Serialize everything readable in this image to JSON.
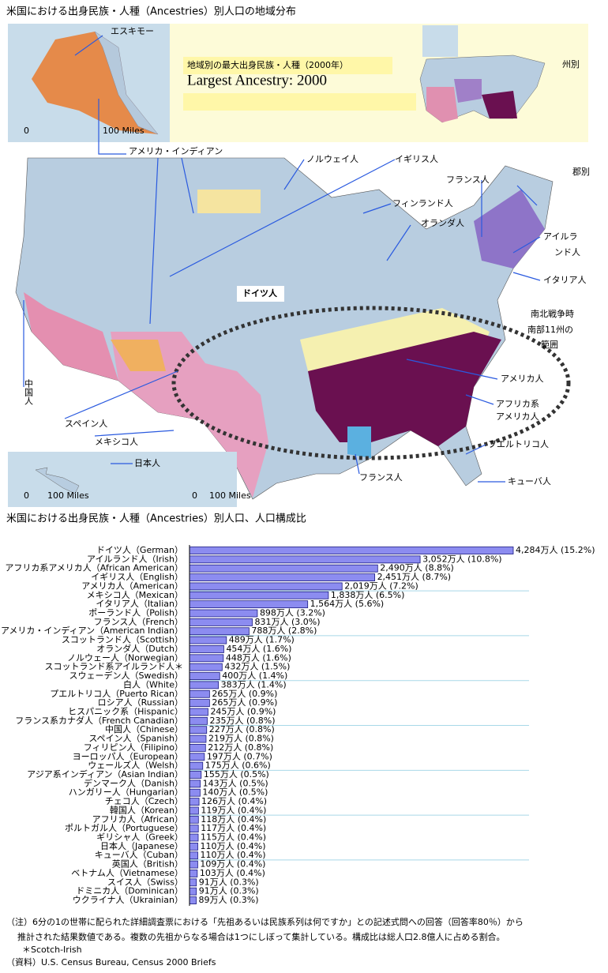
{
  "header": {
    "title": "米国における出身民族・人種（Ancestries）別人口の地域分布"
  },
  "map": {
    "legend_title_ja": "地域別の最大出身民族・人種（2000年）",
    "legend_title_en": "Largest Ancestry: 2000",
    "state_label": "州別",
    "county_label": "郡別",
    "labels": [
      "エスキモー",
      "アメリカ・インディアン",
      "ノルウェイ人",
      "イギリス人",
      "フランス人",
      "フィンランド人",
      "オランダ人",
      "アイルラ",
      "ンド人",
      "イタリア人",
      "ドイツ人",
      "南北戦争時",
      "南部11州の",
      "範囲",
      "アメリカ人",
      "アフリカ系",
      "アメリカ人",
      "プエルトリコ人",
      "キューバ人",
      "フランス人",
      "スペイン人",
      "メキシコ人",
      "日本人",
      "中国人"
    ],
    "scale_labels": [
      "0",
      "100 Miles"
    ]
  },
  "chart_data": {
    "type": "bar",
    "orientation": "horizontal",
    "title": "米国における出身民族・人種（Ancestries）別人口、人口構成比",
    "color": "#8c8cf0",
    "categories": [
      "ドイツ人（German）",
      "アイルランド人（Irish）",
      "アフリカ系アメリカ人（African American）",
      "イギリス人（English）",
      "アメリカ人（American）",
      "メキシコ人（Mexican）",
      "イタリア人（Italian）",
      "ポーランド人（Polish）",
      "フランス人（French）",
      "アメリカ・インディアン（American Indian）",
      "スコットランド人（Scottish）",
      "オランダ人（Dutch）",
      "ノルウェー人（Norwegian）",
      "スコットランド系アイルランド人＊",
      "スウェーデン人（Swedish）",
      "白人（White）",
      "プエルトリコ人（Puerto Rican）",
      "ロシア人（Russian）",
      "ヒスパニック系（Hispanic）",
      "フランス系カナダ人（French Canadian）",
      "中国人（Chinese）",
      "スペイン人（Spanish）",
      "フィリピン人（Filipino）",
      "ヨーロッパ人（European）",
      "ウェールズ人（Welsh）",
      "アジア系インディアン（Asian Indian）",
      "デンマーク人（Danish）",
      "ハンガリー人（Hungarian）",
      "チェコ人（Czech）",
      "韓国人（Korean）",
      "アフリカ人（African）",
      "ポルトガル人（Portuguese）",
      "ギリシャ人（Greek）",
      "日本人（Japanese）",
      "キューバ人（Cuban）",
      "英国人（British）",
      "ベトナム人（Vietnamese）",
      "スイス人（Swiss）",
      "ドミニカ人（Dominican）",
      "ウクライナ人（Ukrainian）"
    ],
    "values": [
      4284,
      3052,
      2490,
      2451,
      2019,
      1838,
      1564,
      898,
      831,
      788,
      489,
      454,
      448,
      432,
      400,
      383,
      265,
      265,
      245,
      235,
      227,
      219,
      212,
      197,
      175,
      155,
      143,
      140,
      126,
      119,
      118,
      117,
      115,
      110,
      110,
      109,
      103,
      91,
      91,
      89
    ],
    "value_labels": [
      "4,284万人 (15.2%)",
      "3,052万人 (10.8%)",
      "2,490万人 (8.8%)",
      "2,451万人 (8.7%)",
      "2,019万人 (7.2%)",
      "1,838万人 (6.5%)",
      "1,564万人 (5.6%)",
      "898万人 (3.2%)",
      "831万人 (3.0%)",
      "788万人 (2.8%)",
      "489万人 (1.7%)",
      "454万人 (1.6%)",
      "448万人 (1.6%)",
      "432万人 (1.5%)",
      "400万人 (1.4%)",
      "383万人 (1.4%)",
      "265万人 (0.9%)",
      "265万人 (0.9%)",
      "245万人 (0.9%)",
      "235万人 (0.8%)",
      "227万人 (0.8%)",
      "219万人 (0.8%)",
      "212万人 (0.8%)",
      "197万人 (0.7%)",
      "175万人 (0.6%)",
      "155万人 (0.5%)",
      "143万人 (0.5%)",
      "140万人 (0.5%)",
      "126万人 (0.4%)",
      "119万人 (0.4%)",
      "118万人 (0.4%)",
      "117万人 (0.4%)",
      "115万人 (0.4%)",
      "110万人 (0.4%)",
      "110万人 (0.4%)",
      "109万人 (0.4%)",
      "103万人 (0.4%)",
      "91万人 (0.3%)",
      "91万人 (0.3%)",
      "89万人 (0.3%)"
    ]
  },
  "notes": [
    "（注）6分の1の世帯に配られた詳細調査票における「先祖あるいは民族系列は何ですか」との記述式問への回答（回答率80％）から",
    "推計された結果数値である。複数の先祖からなる場合は1つにしぼって集計している。構成比は総人口2.8億人に占める割合。",
    "＊Scotch-Irish",
    "（資料）U.S. Census Bureau, Census 2000 Briefs"
  ]
}
